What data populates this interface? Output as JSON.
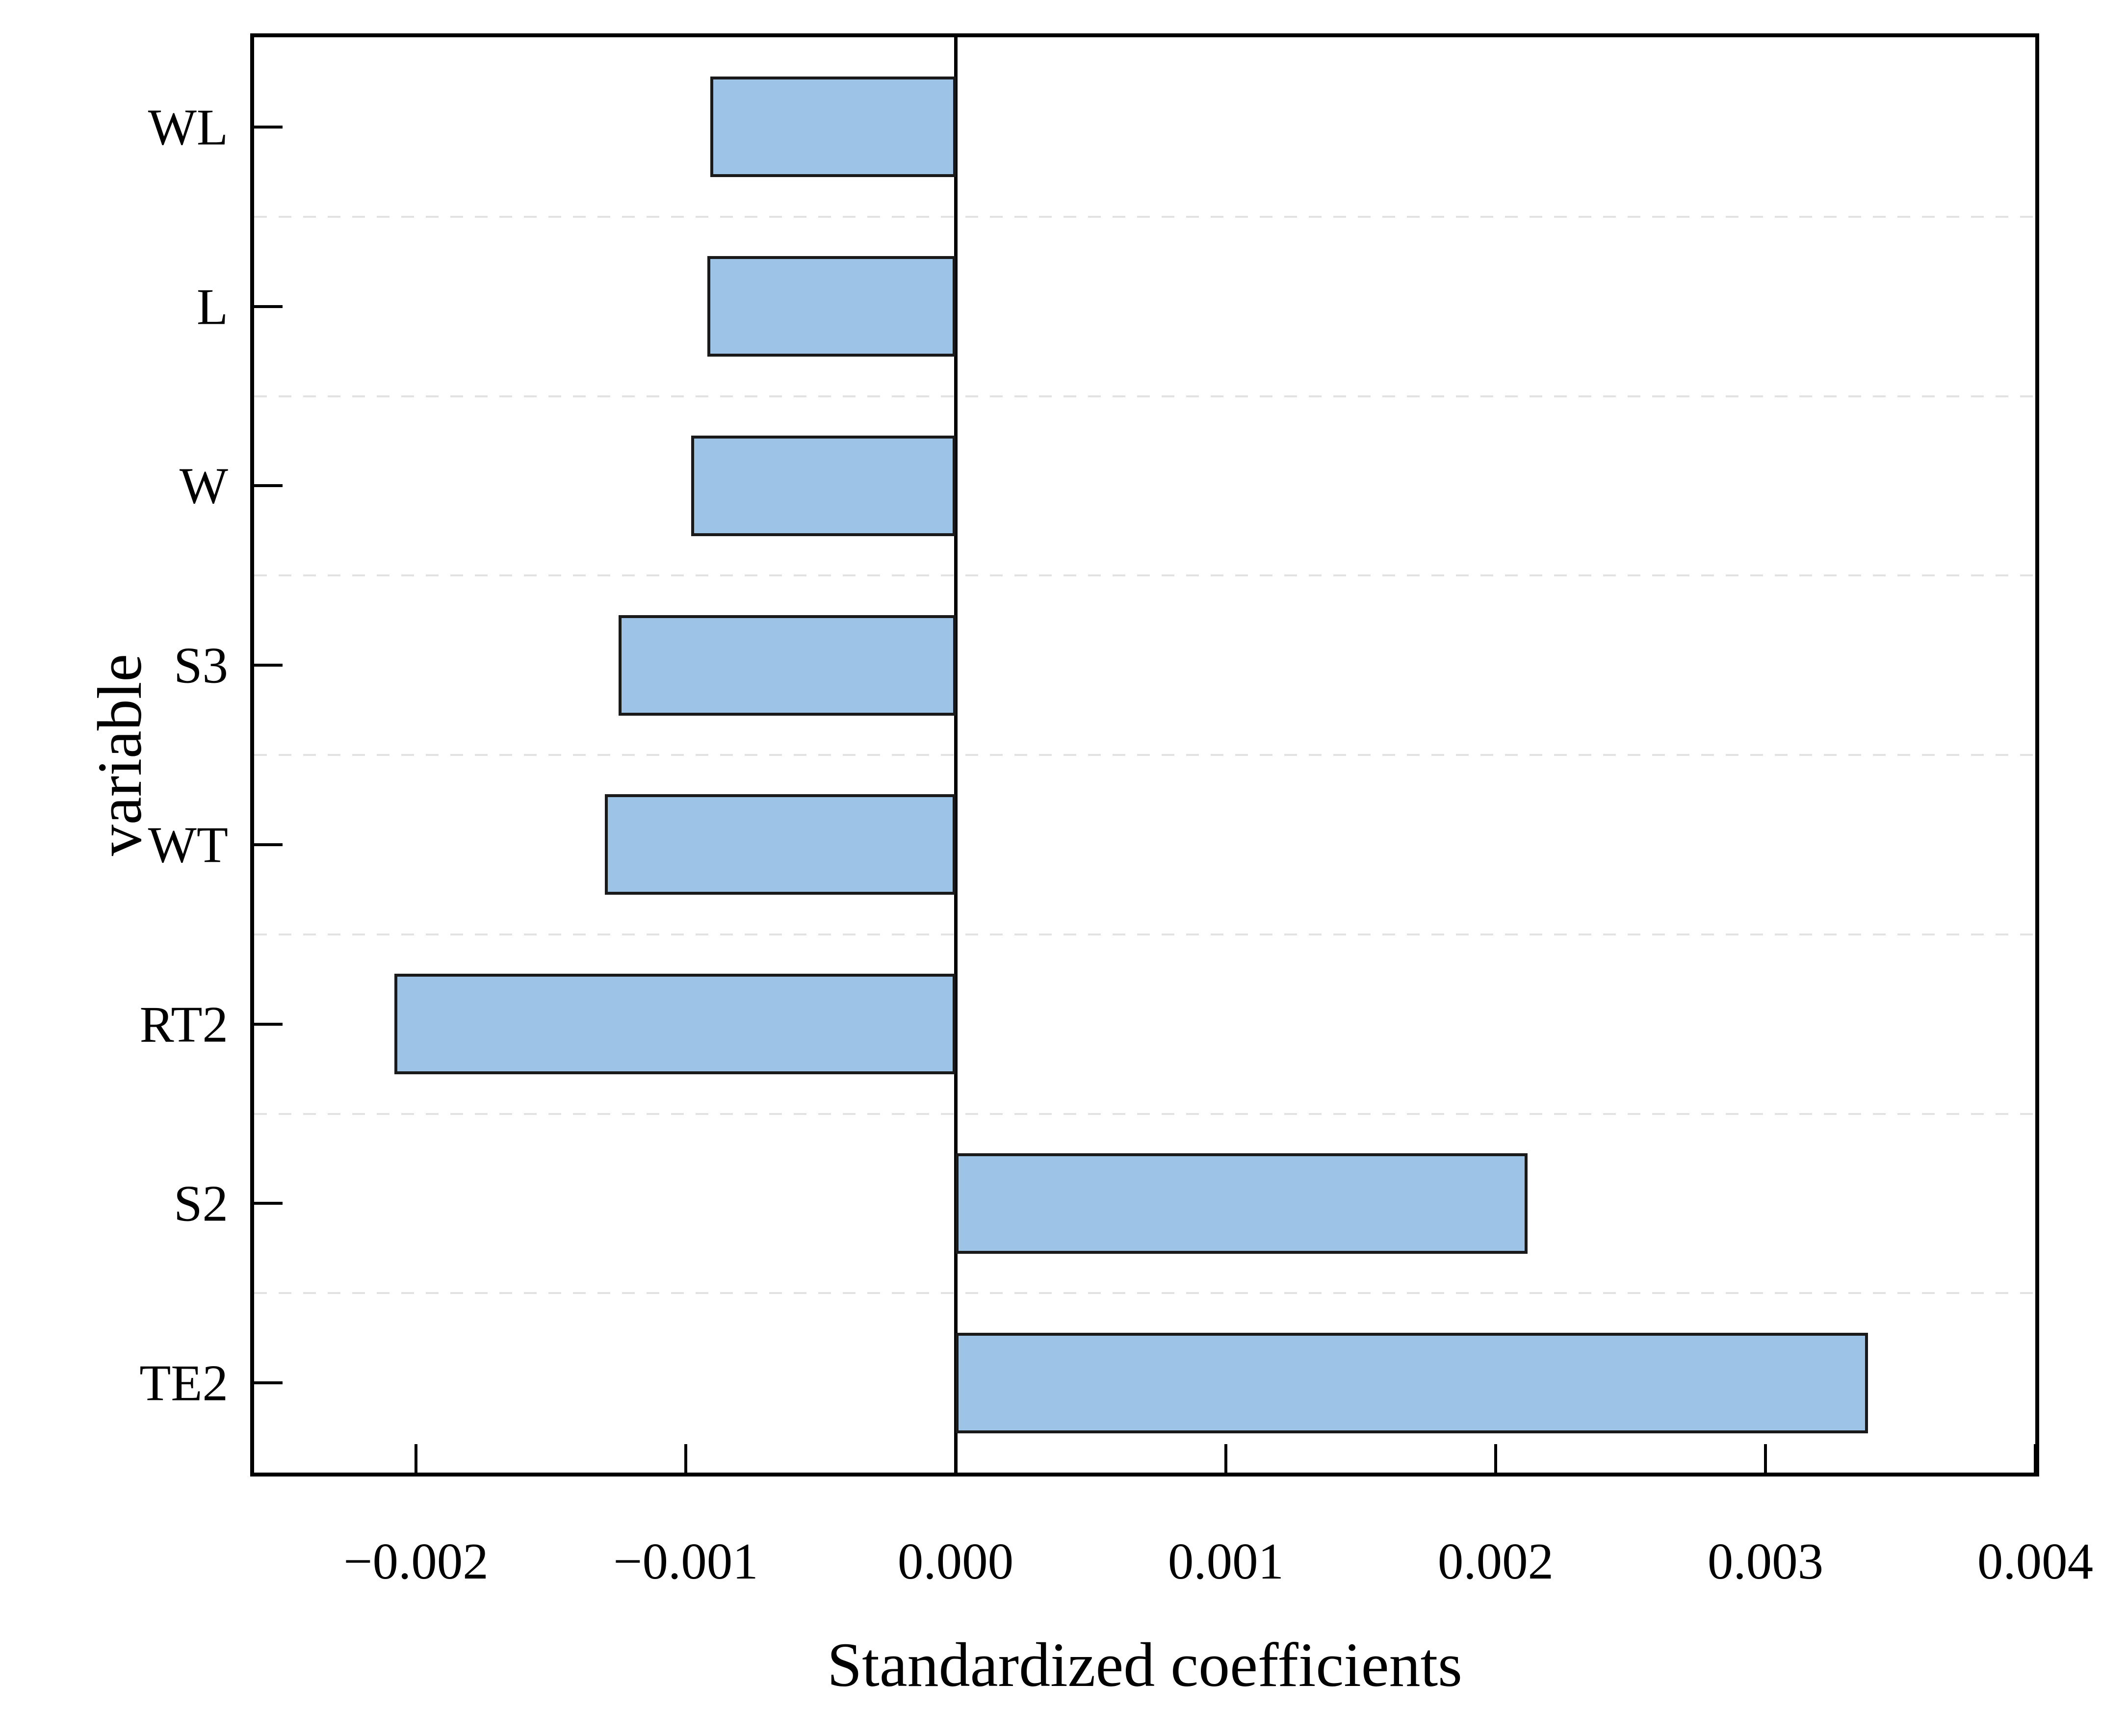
{
  "figure": {
    "background": "#FFFFFF"
  },
  "chart_data": {
    "type": "bar",
    "orientation": "horizontal",
    "title": "",
    "xlabel": "Standardized coefficients",
    "ylabel": "variable",
    "categories": [
      "WL",
      "L",
      "W",
      "S3",
      "WT",
      "RT2",
      "S2",
      "TE2"
    ],
    "values": [
      -0.00091,
      -0.00092,
      -0.00098,
      -0.00125,
      -0.0013,
      -0.00208,
      0.00212,
      0.00338
    ],
    "xlim": [
      -0.0026,
      0.004
    ],
    "x_ticks": [
      {
        "value": -0.002,
        "label": "−0.002"
      },
      {
        "value": -0.001,
        "label": "−0.001"
      },
      {
        "value": 0.0,
        "label": "0.000"
      },
      {
        "value": 0.001,
        "label": "0.001"
      },
      {
        "value": 0.002,
        "label": "0.002"
      },
      {
        "value": 0.003,
        "label": "0.003"
      },
      {
        "value": 0.004,
        "label": "0.004"
      }
    ],
    "grid": "dashed horizontal lines between category bands",
    "legend_position": "none",
    "zero_line": true,
    "colors": {
      "bar_fill": "#9DC3E6",
      "bar_border": "#1A1A1A",
      "grid": "#E2E2E2",
      "axis": "#000000",
      "text": "#000000",
      "background": "#FFFFFF"
    }
  }
}
